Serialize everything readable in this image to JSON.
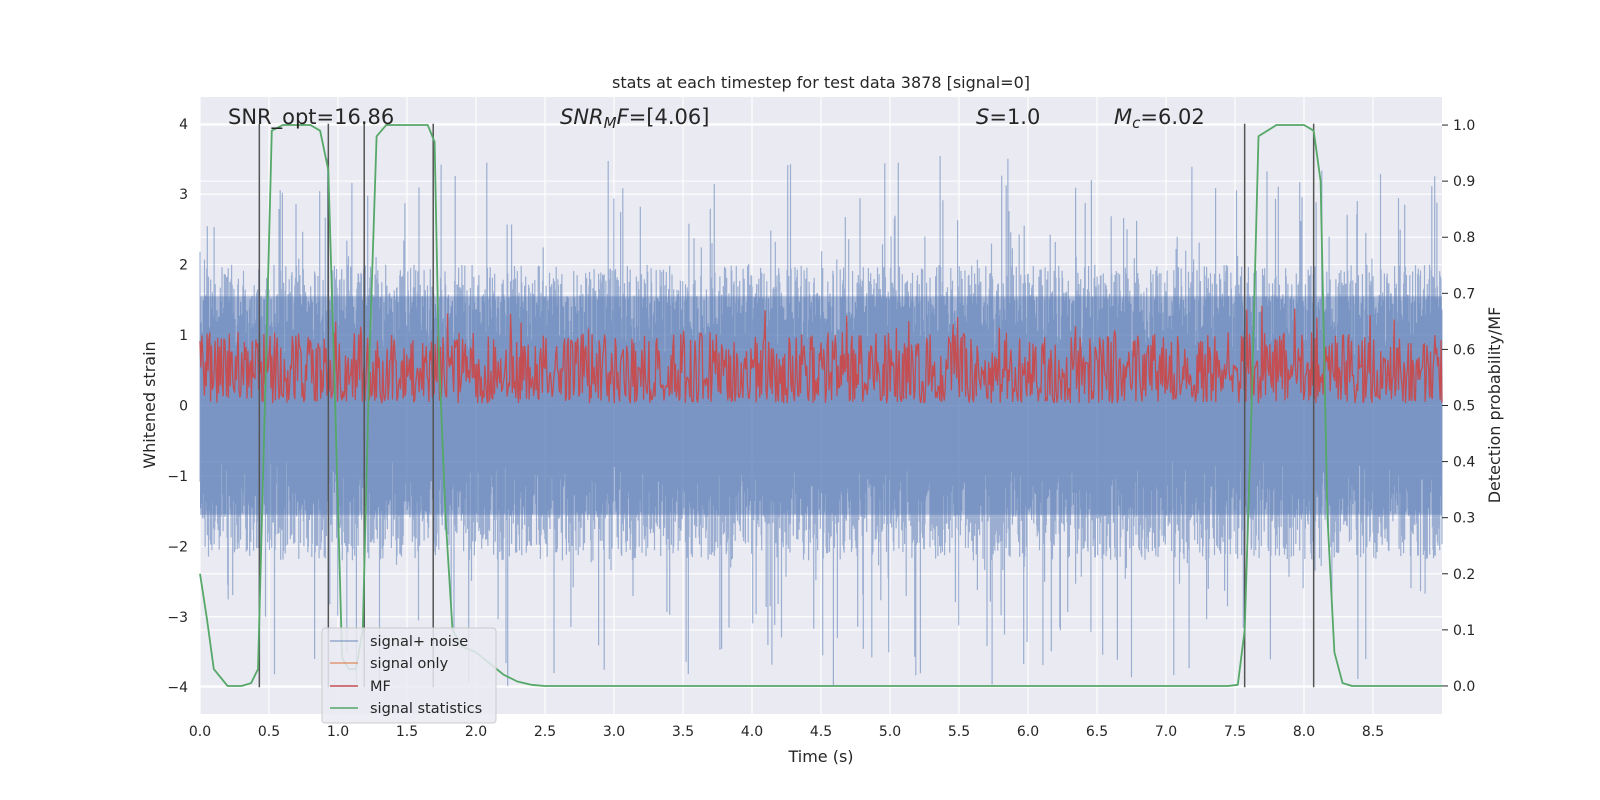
{
  "chart_data": {
    "type": "line",
    "title": "stats at each timestep for test data 3878 [signal=0]",
    "xlabel": "Time (s)",
    "ylabel": "Whitened strain",
    "y2label": "Detection probability/MF",
    "xlim": [
      0.0,
      9.0
    ],
    "ylim": [
      -4.38,
      4.38
    ],
    "y2lim": [
      -0.05,
      1.05
    ],
    "x_ticks": [
      "0.0",
      "0.5",
      "1.0",
      "1.5",
      "2.0",
      "2.5",
      "3.0",
      "3.5",
      "4.0",
      "4.5",
      "5.0",
      "5.5",
      "6.0",
      "6.5",
      "7.0",
      "7.5",
      "8.0",
      "8.5"
    ],
    "y_ticks": [
      "−4",
      "−3",
      "−2",
      "−1",
      "0",
      "1",
      "2",
      "3",
      "4"
    ],
    "y2_ticks": [
      "0.0",
      "0.1",
      "0.2",
      "0.3",
      "0.4",
      "0.5",
      "0.6",
      "0.7",
      "0.8",
      "0.9",
      "1.0"
    ],
    "grid": true,
    "legend_position": "lower-left",
    "annotations": [
      {
        "text": "SNR_opt=16.86",
        "x": 0.2
      },
      {
        "text": "SNR_MF=[4.06]",
        "x": 2.6
      },
      {
        "text": "S=1.0",
        "x": 5.6
      },
      {
        "text": "M_c=6.02",
        "x": 6.6
      }
    ],
    "series": [
      {
        "name": "signal+ noise",
        "color": "#4c72b0",
        "axis": "left",
        "style": "dense noise",
        "envelope": {
          "upper_typical": 2.0,
          "upper_peak": 3.55,
          "lower_typical": -2.2,
          "lower_peak": -4.0
        }
      },
      {
        "name": "signal only",
        "color": "#dd8452",
        "axis": "left",
        "values": []
      },
      {
        "name": "MF",
        "color": "#c44e52",
        "axis": "right",
        "style": "dense noise",
        "envelope": {
          "low": 0.505,
          "high": 0.63,
          "peak": 0.68
        }
      },
      {
        "name": "signal statistics",
        "color": "#55a868",
        "axis": "right",
        "x": [
          0.0,
          0.05,
          0.1,
          0.2,
          0.3,
          0.37,
          0.42,
          0.47,
          0.52,
          0.6,
          0.7,
          0.8,
          0.87,
          0.93,
          0.98,
          1.03,
          1.08,
          1.13,
          1.18,
          1.23,
          1.28,
          1.35,
          1.45,
          1.55,
          1.6,
          1.65,
          1.7,
          1.73,
          1.78,
          1.83,
          1.9,
          2.0,
          2.1,
          2.2,
          2.3,
          2.4,
          2.5,
          3.0,
          4.0,
          5.0,
          6.0,
          7.0,
          7.3,
          7.45,
          7.52,
          7.57,
          7.62,
          7.67,
          7.8,
          7.9,
          8.0,
          8.07,
          8.12,
          8.17,
          8.22,
          8.28,
          8.35,
          8.5,
          9.0
        ],
        "y": [
          0.2,
          0.12,
          0.03,
          0.0,
          0.0,
          0.005,
          0.03,
          0.5,
          0.99,
          1.0,
          1.0,
          1.0,
          0.99,
          0.92,
          0.5,
          0.05,
          0.03,
          0.03,
          0.1,
          0.6,
          0.98,
          1.0,
          1.0,
          1.0,
          1.0,
          1.0,
          0.97,
          0.6,
          0.3,
          0.1,
          0.07,
          0.06,
          0.04,
          0.02,
          0.008,
          0.002,
          0.0,
          0.0,
          0.0,
          0.0,
          0.0,
          0.0,
          0.0,
          0.0,
          0.002,
          0.1,
          0.5,
          0.98,
          1.0,
          1.0,
          1.0,
          0.99,
          0.9,
          0.3,
          0.06,
          0.005,
          0.0,
          0.0,
          0.0
        ]
      }
    ],
    "vertical_markers": {
      "color": "#555555",
      "x": [
        0.43,
        0.93,
        1.19,
        1.69,
        7.57,
        8.07
      ]
    }
  }
}
